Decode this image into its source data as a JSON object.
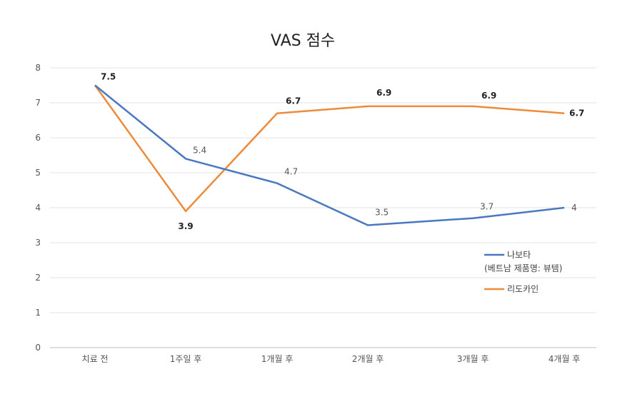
{
  "chart_data": {
    "type": "line",
    "title": "VAS 점수",
    "categories": [
      "치료 전",
      "1주일 후",
      "1개월 후",
      "2개월 후",
      "3개월 후",
      "4개월 후"
    ],
    "y_ticks": [
      "0",
      "1",
      "2",
      "3",
      "4",
      "5",
      "6",
      "7",
      "8"
    ],
    "ylim": [
      0,
      8
    ],
    "grid": "horizontal",
    "legend_position": "right",
    "series": [
      {
        "name_line1": "나보타",
        "name_line2": "(베트남 제품명: 뷰템)",
        "color": "#4a78c0",
        "values": [
          7.5,
          5.4,
          4.7,
          3.5,
          3.7,
          4
        ],
        "labels": [
          "",
          "5.4",
          "4.7",
          "3.5",
          "3.7",
          "4"
        ]
      },
      {
        "name": "리도카인",
        "color": "#ee8b3a",
        "values": [
          7.5,
          3.9,
          6.7,
          6.9,
          6.9,
          6.7
        ],
        "labels": [
          "7.5",
          "3.9",
          "6.7",
          "6.9",
          "6.9",
          "6.7"
        ]
      }
    ]
  }
}
